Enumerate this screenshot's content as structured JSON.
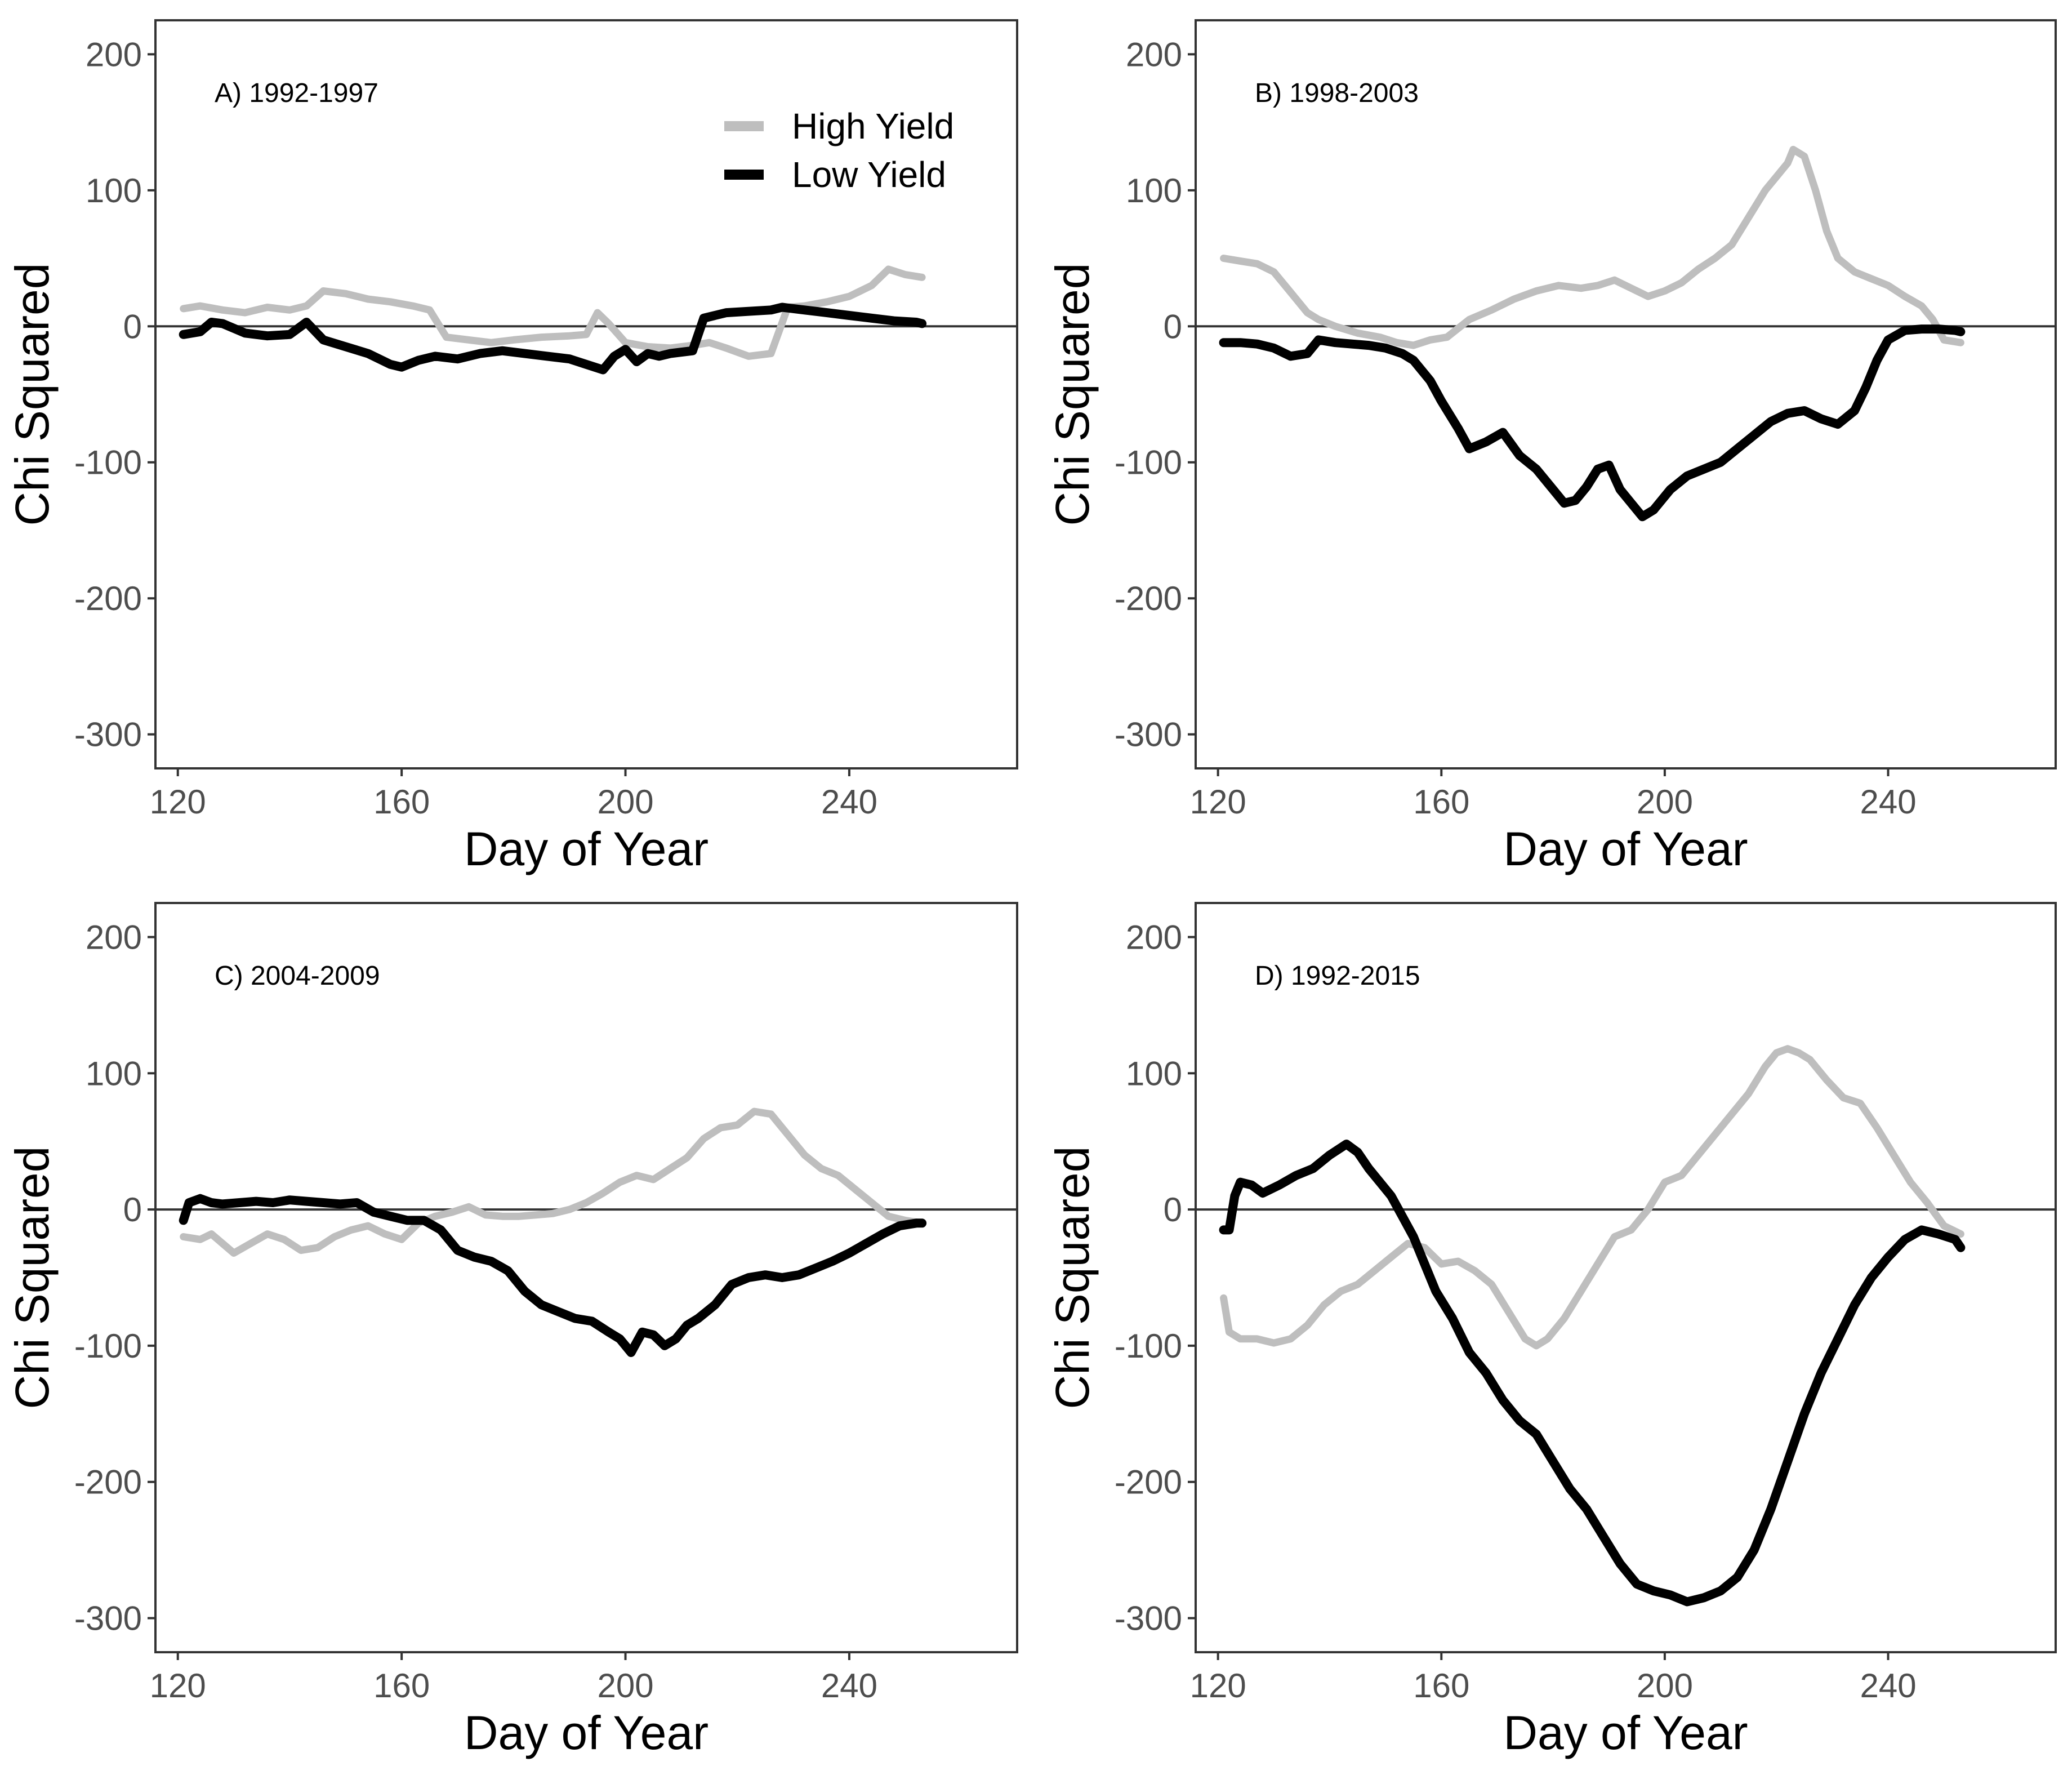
{
  "colors": {
    "high": "#bebebe",
    "low": "#000000",
    "axis": "#333333"
  },
  "legend": {
    "items": [
      {
        "label": "High Yield",
        "color": "#bebebe"
      },
      {
        "label": "Low Yield",
        "color": "#000000"
      }
    ]
  },
  "chart_data": [
    {
      "type": "line",
      "title": "A) 1992-1997",
      "xlabel": "Day of Year",
      "ylabel": "Chi Squared",
      "xlim": [
        116,
        270
      ],
      "ylim": [
        -325,
        225
      ],
      "xticks": [
        120,
        160,
        200,
        240
      ],
      "yticks": [
        -300,
        -200,
        -100,
        0,
        100,
        200
      ],
      "legend_position": "top-right",
      "series": [
        {
          "name": "High Yield",
          "x": [
            121,
            124,
            128,
            132,
            136,
            140,
            143,
            146,
            150,
            154,
            158,
            162,
            165,
            168,
            172,
            176,
            180,
            185,
            190,
            193,
            195,
            197,
            200,
            204,
            208,
            212,
            215,
            218,
            222,
            226,
            229,
            232,
            236,
            240,
            244,
            247,
            250,
            253
          ],
          "y": [
            13,
            15,
            12,
            10,
            14,
            12,
            15,
            26,
            24,
            20,
            18,
            15,
            12,
            -8,
            -10,
            -12,
            -10,
            -8,
            -7,
            -6,
            10,
            2,
            -12,
            -15,
            -16,
            -14,
            -12,
            -16,
            -22,
            -20,
            14,
            15,
            18,
            22,
            30,
            42,
            38,
            36
          ]
        },
        {
          "name": "Low Yield",
          "x": [
            121,
            124,
            126,
            128,
            132,
            136,
            140,
            143,
            146,
            150,
            154,
            158,
            160,
            163,
            166,
            170,
            174,
            178,
            182,
            186,
            190,
            193,
            196,
            198,
            200,
            202,
            204,
            206,
            208,
            212,
            214,
            218,
            222,
            226,
            228,
            232,
            236,
            240,
            244,
            248,
            252,
            253
          ],
          "y": [
            -6,
            -4,
            3,
            2,
            -5,
            -7,
            -6,
            3,
            -10,
            -15,
            -20,
            -28,
            -30,
            -25,
            -22,
            -24,
            -20,
            -18,
            -20,
            -22,
            -24,
            -28,
            -32,
            -22,
            -17,
            -26,
            -20,
            -22,
            -20,
            -18,
            6,
            10,
            11,
            12,
            14,
            12,
            10,
            8,
            6,
            4,
            3,
            2
          ]
        }
      ]
    },
    {
      "type": "line",
      "title": "B) 1998-2003",
      "xlabel": "Day of Year",
      "ylabel": "Chi Squared",
      "xlim": [
        116,
        270
      ],
      "ylim": [
        -325,
        225
      ],
      "xticks": [
        120,
        160,
        200,
        240
      ],
      "yticks": [
        -300,
        -200,
        -100,
        0,
        100,
        200
      ],
      "series": [
        {
          "name": "High Yield",
          "x": [
            121,
            124,
            127,
            130,
            133,
            136,
            138,
            141,
            145,
            149,
            152,
            155,
            158,
            161,
            165,
            169,
            173,
            177,
            181,
            185,
            188,
            191,
            194,
            197,
            200,
            203,
            206,
            209,
            212,
            215,
            218,
            220,
            222,
            223,
            225,
            227,
            229,
            231,
            234,
            237,
            240,
            243,
            246,
            248,
            250,
            253
          ],
          "y": [
            50,
            48,
            46,
            40,
            25,
            10,
            5,
            0,
            -5,
            -8,
            -12,
            -14,
            -10,
            -8,
            5,
            12,
            20,
            26,
            30,
            28,
            30,
            34,
            28,
            22,
            26,
            32,
            42,
            50,
            60,
            80,
            100,
            110,
            120,
            130,
            125,
            100,
            70,
            50,
            40,
            35,
            30,
            22,
            15,
            5,
            -10,
            -12
          ]
        },
        {
          "name": "Low Yield",
          "x": [
            121,
            124,
            127,
            130,
            133,
            136,
            138,
            141,
            144,
            147,
            150,
            153,
            155,
            158,
            160,
            163,
            165,
            168,
            171,
            174,
            177,
            180,
            182,
            184,
            186,
            188,
            190,
            192,
            194,
            196,
            198,
            201,
            204,
            207,
            210,
            213,
            216,
            219,
            222,
            225,
            228,
            231,
            234,
            236,
            238,
            240,
            243,
            246,
            249,
            252,
            253
          ],
          "y": [
            -12,
            -12,
            -13,
            -16,
            -22,
            -20,
            -10,
            -12,
            -13,
            -14,
            -16,
            -20,
            -25,
            -40,
            -55,
            -75,
            -90,
            -85,
            -78,
            -95,
            -105,
            -120,
            -130,
            -128,
            -118,
            -105,
            -102,
            -120,
            -130,
            -140,
            -135,
            -120,
            -110,
            -105,
            -100,
            -90,
            -80,
            -70,
            -64,
            -62,
            -68,
            -72,
            -62,
            -45,
            -25,
            -10,
            -3,
            -2,
            -2,
            -3,
            -4
          ]
        }
      ]
    },
    {
      "type": "line",
      "title": "C) 2004-2009",
      "xlabel": "Day of Year",
      "ylabel": "Chi Squared",
      "xlim": [
        116,
        270
      ],
      "ylim": [
        -325,
        225
      ],
      "xticks": [
        120,
        160,
        200,
        240
      ],
      "yticks": [
        -300,
        -200,
        -100,
        0,
        100,
        200
      ],
      "series": [
        {
          "name": "High Yield",
          "x": [
            121,
            124,
            126,
            128,
            130,
            133,
            136,
            139,
            142,
            145,
            148,
            151,
            154,
            157,
            160,
            163,
            166,
            169,
            172,
            175,
            178,
            181,
            184,
            187,
            190,
            193,
            196,
            199,
            202,
            205,
            208,
            211,
            214,
            217,
            220,
            223,
            226,
            229,
            232,
            235,
            238,
            241,
            244,
            247,
            250,
            253
          ],
          "y": [
            -20,
            -22,
            -18,
            -25,
            -32,
            -25,
            -18,
            -22,
            -30,
            -28,
            -20,
            -15,
            -12,
            -18,
            -22,
            -10,
            -5,
            -2,
            2,
            -4,
            -5,
            -5,
            -4,
            -3,
            0,
            5,
            12,
            20,
            25,
            22,
            30,
            38,
            52,
            60,
            62,
            72,
            70,
            55,
            40,
            30,
            25,
            15,
            5,
            -5,
            -8,
            -10
          ]
        },
        {
          "name": "Low Yield",
          "x": [
            121,
            122,
            124,
            126,
            128,
            131,
            134,
            137,
            140,
            143,
            146,
            149,
            152,
            155,
            158,
            161,
            164,
            167,
            170,
            173,
            176,
            179,
            182,
            185,
            188,
            191,
            194,
            197,
            199,
            201,
            203,
            205,
            207,
            209,
            211,
            213,
            216,
            219,
            222,
            225,
            228,
            231,
            234,
            237,
            240,
            243,
            246,
            249,
            252,
            253
          ],
          "y": [
            -8,
            5,
            8,
            5,
            4,
            5,
            6,
            5,
            7,
            6,
            5,
            4,
            5,
            -2,
            -5,
            -8,
            -8,
            -15,
            -30,
            -35,
            -38,
            -45,
            -60,
            -70,
            -75,
            -80,
            -82,
            -90,
            -95,
            -105,
            -90,
            -92,
            -100,
            -95,
            -85,
            -80,
            -70,
            -55,
            -50,
            -48,
            -50,
            -48,
            -43,
            -38,
            -32,
            -25,
            -18,
            -12,
            -10,
            -10
          ]
        }
      ]
    },
    {
      "type": "line",
      "title": "D) 1992-2015",
      "xlabel": "Day of Year",
      "ylabel": "Chi Squared",
      "xlim": [
        116,
        270
      ],
      "ylim": [
        -325,
        225
      ],
      "xticks": [
        120,
        160,
        200,
        240
      ],
      "yticks": [
        -300,
        -200,
        -100,
        0,
        100,
        200
      ],
      "series": [
        {
          "name": "High Yield",
          "x": [
            121,
            122,
            124,
            127,
            130,
            133,
            136,
            139,
            142,
            145,
            148,
            151,
            154,
            157,
            160,
            163,
            166,
            169,
            172,
            175,
            177,
            179,
            182,
            185,
            188,
            191,
            194,
            197,
            200,
            203,
            206,
            209,
            212,
            215,
            218,
            220,
            222,
            224,
            226,
            229,
            232,
            235,
            238,
            241,
            244,
            247,
            250,
            253
          ],
          "y": [
            -65,
            -90,
            -95,
            -95,
            -98,
            -95,
            -85,
            -70,
            -60,
            -55,
            -45,
            -35,
            -25,
            -28,
            -40,
            -38,
            -45,
            -55,
            -75,
            -95,
            -100,
            -95,
            -80,
            -60,
            -40,
            -20,
            -15,
            0,
            20,
            25,
            40,
            55,
            70,
            85,
            105,
            115,
            118,
            115,
            110,
            95,
            82,
            78,
            60,
            40,
            20,
            5,
            -12,
            -18
          ]
        },
        {
          "name": "Low Yield",
          "x": [
            121,
            122,
            123,
            124,
            126,
            128,
            131,
            134,
            137,
            140,
            143,
            145,
            147,
            149,
            151,
            153,
            155,
            157,
            159,
            162,
            165,
            168,
            171,
            174,
            177,
            180,
            183,
            186,
            189,
            192,
            195,
            198,
            201,
            204,
            207,
            210,
            213,
            216,
            219,
            222,
            225,
            228,
            231,
            234,
            237,
            240,
            243,
            246,
            249,
            252,
            253
          ],
          "y": [
            -15,
            -15,
            10,
            20,
            18,
            12,
            18,
            25,
            30,
            40,
            48,
            42,
            30,
            20,
            10,
            -5,
            -20,
            -40,
            -60,
            -80,
            -105,
            -120,
            -140,
            -155,
            -165,
            -185,
            -205,
            -220,
            -240,
            -260,
            -275,
            -280,
            -283,
            -288,
            -285,
            -280,
            -270,
            -250,
            -220,
            -185,
            -150,
            -120,
            -95,
            -70,
            -50,
            -35,
            -22,
            -15,
            -18,
            -22,
            -28
          ]
        }
      ]
    }
  ]
}
